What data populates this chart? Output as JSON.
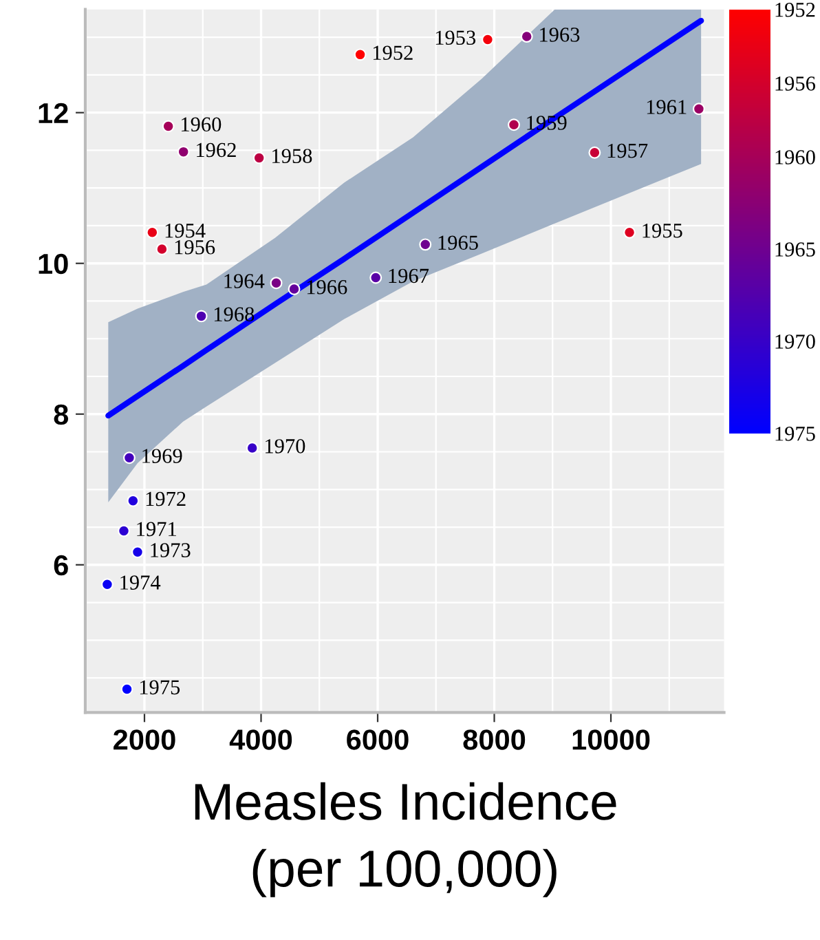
{
  "chart_data": {
    "type": "scatter",
    "xlabel": "Measles Incidence\n(per 100,000)",
    "xlim": [
      985,
      11941
    ],
    "xticks": [
      2000,
      4000,
      6000,
      8000,
      10000
    ],
    "ylim": [
      4.04,
      13.37
    ],
    "yticks": [
      6,
      8,
      10,
      12
    ],
    "grid": true,
    "clim": [
      1975,
      1952
    ],
    "cticks": [
      1952,
      1956,
      1960,
      1965,
      1970,
      1975
    ],
    "series": [
      {
        "type": "line",
        "color": "#0000ff",
        "x": [
          1379,
          1882,
          2661,
          3063,
          4243,
          5424,
          6604,
          7784,
          9037,
          11547
        ],
        "values": [
          7.98,
          8.24,
          8.64,
          8.85,
          9.46,
          10.06,
          10.67,
          11.28,
          11.93,
          13.22
        ],
        "lower": [
          6.83,
          7.35,
          7.9,
          8.1,
          8.68,
          9.26,
          9.76,
          10.13,
          10.53,
          11.32
        ],
        "upper": [
          9.22,
          9.4,
          9.62,
          9.72,
          10.34,
          11.07,
          11.67,
          12.45,
          13.37,
          13.37
        ]
      },
      {
        "marker": "circle",
        "x": [
          5700,
          7887,
          2134,
          10319,
          2300,
          9721,
          3967,
          8336,
          2409,
          11509,
          2669,
          8557,
          4260,
          6817,
          4567,
          5967,
          2975,
          1740,
          3849,
          1646,
          1804,
          1882,
          1362,
          1700
        ],
        "values": [
          12.77,
          12.97,
          10.41,
          10.41,
          10.19,
          11.47,
          11.4,
          11.84,
          11.82,
          12.05,
          11.48,
          13.01,
          9.74,
          10.25,
          9.66,
          9.81,
          9.3,
          7.42,
          7.55,
          6.45,
          6.85,
          6.17,
          5.74,
          4.35
        ],
        "cvalues": [
          1952,
          1953,
          1954,
          1955,
          1956,
          1957,
          1958,
          1959,
          1960,
          1961,
          1962,
          1963,
          1964,
          1965,
          1966,
          1967,
          1968,
          1969,
          1970,
          1971,
          1972,
          1973,
          1974,
          1975
        ],
        "colors": [
          "#ff0000",
          "#f4000b",
          "#e90016",
          "#de0021",
          "#d3002c",
          "#c80037",
          "#bc0043",
          "#b1004e",
          "#a60059",
          "#9b0064",
          "#90006f",
          "#85007a",
          "#7a0085",
          "#6f0090",
          "#64009b",
          "#5900a6",
          "#4e00b1",
          "#4300bc",
          "#3700c8",
          "#2c00d3",
          "#2100de",
          "#1600e9",
          "#0b00f4",
          "#0000ff"
        ]
      }
    ],
    "annotations": [
      {
        "text": "1952",
        "x": 5700,
        "y": 12.77
      },
      {
        "text": "1953",
        "x": 7887,
        "y": 12.97
      },
      {
        "text": "1954",
        "x": 2134,
        "y": 10.41
      },
      {
        "text": "1955",
        "x": 10319,
        "y": 10.41
      },
      {
        "text": "1956",
        "x": 2300,
        "y": 10.19
      },
      {
        "text": "1957",
        "x": 9721,
        "y": 11.47
      },
      {
        "text": "1958",
        "x": 3967,
        "y": 11.4
      },
      {
        "text": "1959",
        "x": 8336,
        "y": 11.84
      },
      {
        "text": "1960",
        "x": 2409,
        "y": 11.82
      },
      {
        "text": "1961",
        "x": 11509,
        "y": 12.05
      },
      {
        "text": "1962",
        "x": 2669,
        "y": 11.48
      },
      {
        "text": "1963",
        "x": 8557,
        "y": 13.01
      },
      {
        "text": "1964",
        "x": 4260,
        "y": 9.74
      },
      {
        "text": "1965",
        "x": 6817,
        "y": 10.25
      },
      {
        "text": "1966",
        "x": 4567,
        "y": 9.66
      },
      {
        "text": "1967",
        "x": 5967,
        "y": 9.81
      },
      {
        "text": "1968",
        "x": 2975,
        "y": 9.3
      },
      {
        "text": "1969",
        "x": 1740,
        "y": 7.42
      },
      {
        "text": "1970",
        "x": 3849,
        "y": 7.55
      },
      {
        "text": "1971",
        "x": 1646,
        "y": 6.45
      },
      {
        "text": "1972",
        "x": 1804,
        "y": 6.85
      },
      {
        "text": "1973",
        "x": 1882,
        "y": 6.17
      },
      {
        "text": "1974",
        "x": 1362,
        "y": 5.74
      },
      {
        "text": "1975",
        "x": 1700,
        "y": 4.35
      }
    ]
  }
}
